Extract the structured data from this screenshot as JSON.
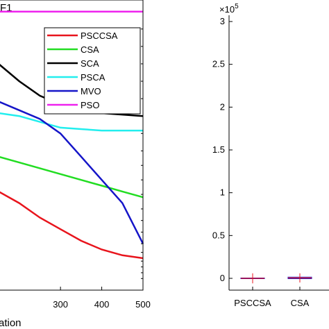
{
  "chart_data": [
    {
      "type": "line",
      "title_fragment": "F1",
      "xlabel_fragment": "ation",
      "xlim": [
        150,
        500
      ],
      "xticks": [
        300,
        400,
        500
      ],
      "y_scale": "log",
      "grid": false,
      "legend_placement": "top-right",
      "x": [
        150,
        200,
        250,
        300,
        350,
        400,
        450,
        500
      ],
      "series": [
        {
          "name": "PSCCSA",
          "color": "#e8141c",
          "values": [
            0.34,
            0.3,
            0.25,
            0.21,
            0.17,
            0.14,
            0.12,
            0.11
          ]
        },
        {
          "name": "CSA",
          "color": "#22dd22",
          "values": [
            0.46,
            0.44,
            0.42,
            0.4,
            0.38,
            0.36,
            0.34,
            0.32
          ]
        },
        {
          "name": "SCA",
          "color": "#000000",
          "values": [
            0.78,
            0.72,
            0.67,
            0.64,
            0.62,
            0.61,
            0.605,
            0.6
          ]
        },
        {
          "name": "PSCA",
          "color": "#22eeee",
          "values": [
            0.61,
            0.6,
            0.58,
            0.56,
            0.555,
            0.55,
            0.55,
            0.55
          ]
        },
        {
          "name": "MVO",
          "color": "#1515c8",
          "values": [
            0.65,
            0.62,
            0.59,
            0.54,
            0.46,
            0.38,
            0.3,
            0.16
          ]
        },
        {
          "name": "PSO",
          "color": "#ee22ee",
          "values": [
            0.96,
            0.96,
            0.96,
            0.96,
            0.96,
            0.96,
            0.96,
            0.96
          ]
        }
      ]
    },
    {
      "type": "box",
      "exponent_label_base": "×10",
      "exponent_label_power": "5",
      "ylim": [
        0,
        3
      ],
      "yticks": [
        "0",
        "0.5",
        "1",
        "1.5",
        "2",
        "2.5",
        "3"
      ],
      "categories": [
        "PSCCSA",
        "CSA"
      ],
      "grid": false,
      "box_color": "#1515c8",
      "median_color": "#e8141c",
      "values": [
        {
          "median": 0.0,
          "q1": 0.0,
          "q3": 0.0,
          "whisker_low": -0.01,
          "whisker_high": 0.01
        },
        {
          "median": 0.005,
          "q1": 0.0,
          "q3": 0.01,
          "whisker_low": 0.0,
          "whisker_high": 0.01
        }
      ]
    }
  ]
}
